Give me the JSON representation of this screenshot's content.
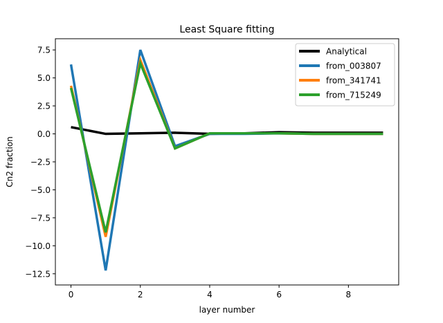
{
  "chart_data": {
    "type": "line",
    "title": "Least Square fitting",
    "xlabel": "layer number",
    "ylabel": "Cn2 fraction",
    "xlim": [
      -0.45,
      9.45
    ],
    "ylim": [
      -13.5,
      8.5
    ],
    "xticks": [
      0,
      2,
      4,
      6,
      8
    ],
    "yticks": [
      7.5,
      5.0,
      2.5,
      0.0,
      -2.5,
      -5.0,
      -7.5,
      -10.0,
      -12.5
    ],
    "ytick_labels": [
      "7.5",
      "5.0",
      "2.5",
      "0.0",
      "−2.5",
      "−5.0",
      "−7.5",
      "−10.0",
      "−12.5"
    ],
    "grid": false,
    "legend_position": "top-right",
    "x": [
      0,
      1,
      2,
      3,
      4,
      5,
      6,
      7,
      8,
      9
    ],
    "series": [
      {
        "name": "Analytical",
        "color": "#000000",
        "values": [
          0.6,
          0.0,
          0.05,
          0.1,
          0.0,
          0.05,
          0.15,
          0.1,
          0.1,
          0.1
        ]
      },
      {
        "name": "from_003807",
        "color": "#1f77b4",
        "values": [
          6.2,
          -12.2,
          7.5,
          -1.1,
          0.0,
          0.0,
          0.05,
          0.0,
          0.0,
          0.0
        ]
      },
      {
        "name": "from_341741",
        "color": "#ff7f0e",
        "values": [
          4.3,
          -9.2,
          6.6,
          -1.3,
          0.05,
          0.05,
          0.05,
          0.0,
          0.0,
          0.0
        ]
      },
      {
        "name": "from_715249",
        "color": "#2ca02c",
        "values": [
          4.1,
          -8.8,
          6.3,
          -1.3,
          0.05,
          0.05,
          0.05,
          0.0,
          0.0,
          0.0
        ]
      }
    ]
  }
}
